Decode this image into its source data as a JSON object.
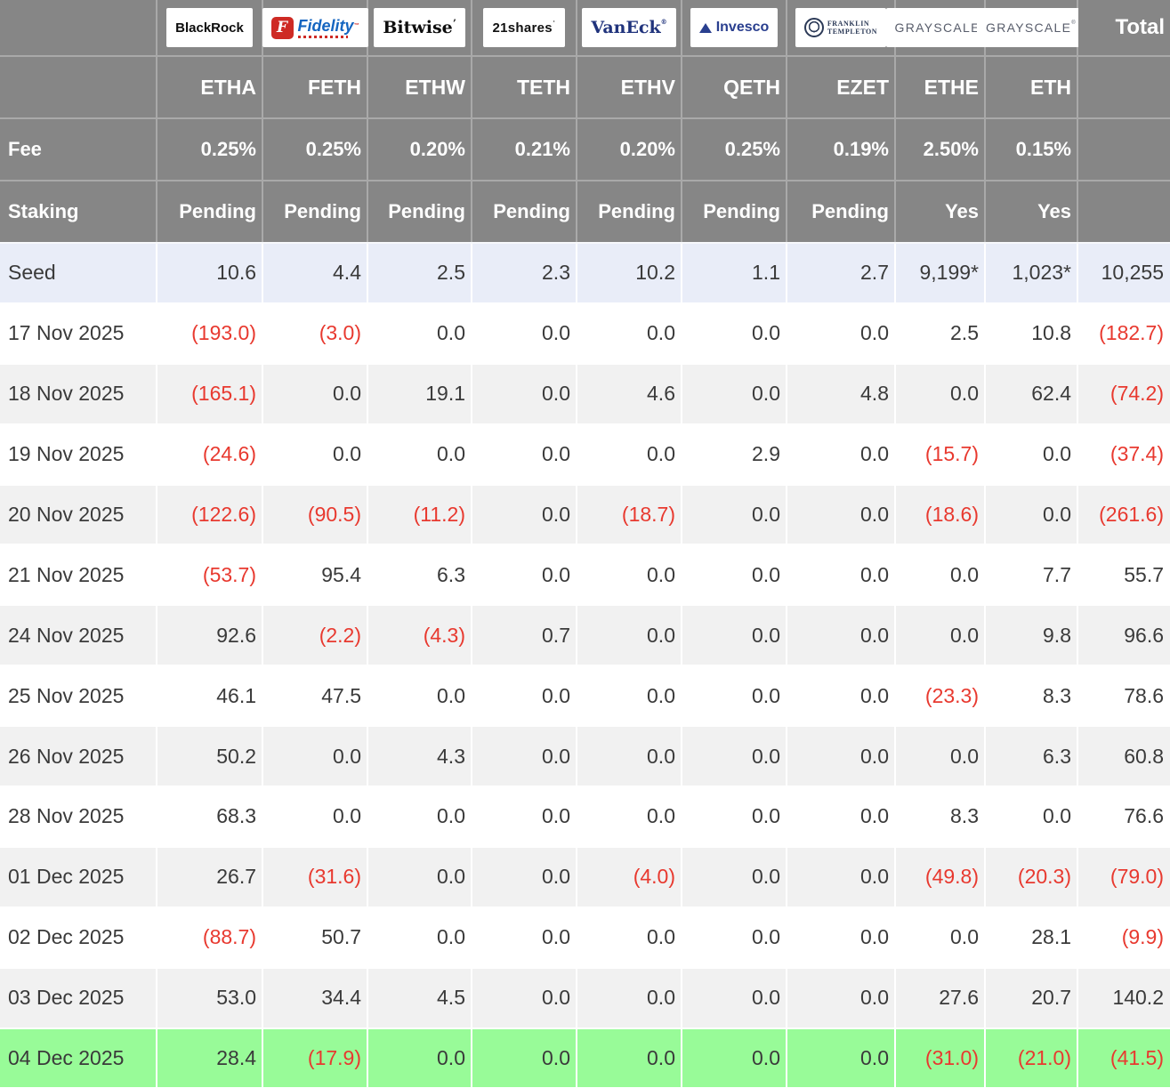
{
  "chart_data": {
    "type": "table",
    "total_header": "Total",
    "fee_label": "Fee",
    "staking_label": "Staking",
    "providers": [
      {
        "brand": "blackrock",
        "logo_text": "BlackRock",
        "ticker": "ETHA",
        "fee": "0.25%",
        "staking": "Pending"
      },
      {
        "brand": "fidelity",
        "logo_badge": "F",
        "logo_text": "Fidelity",
        "ticker": "FETH",
        "fee": "0.25%",
        "staking": "Pending"
      },
      {
        "brand": "bitwise",
        "logo_text": "Bitwise",
        "ticker": "ETHW",
        "fee": "0.20%",
        "staking": "Pending"
      },
      {
        "brand": "21shares",
        "logo_text": "21shares",
        "ticker": "TETH",
        "fee": "0.21%",
        "staking": "Pending"
      },
      {
        "brand": "vaneck",
        "logo_text": "VanEck",
        "ticker": "ETHV",
        "fee": "0.20%",
        "staking": "Pending"
      },
      {
        "brand": "invesco",
        "logo_text": "Invesco",
        "ticker": "QETH",
        "fee": "0.25%",
        "staking": "Pending"
      },
      {
        "brand": "franklin",
        "logo_lines": [
          "FRANKLIN",
          "TEMPLETON"
        ],
        "ticker": "EZET",
        "fee": "0.19%",
        "staking": "Pending"
      },
      {
        "brand": "grayscale",
        "logo_text": "GRAYSCALE",
        "ticker": "ETHE",
        "fee": "2.50%",
        "staking": "Yes"
      },
      {
        "brand": "grayscale",
        "logo_text": "GRAYSCALE",
        "ticker": "ETH",
        "fee": "0.15%",
        "staking": "Yes"
      }
    ],
    "rows": [
      {
        "label": "Seed",
        "values": [
          "10.6",
          "4.4",
          "2.5",
          "2.3",
          "10.2",
          "1.1",
          "2.7",
          "9,199*",
          "1,023*"
        ],
        "total": "10,255",
        "highlight": "seed"
      },
      {
        "label": "17 Nov 2025",
        "values": [
          "(193.0)",
          "(3.0)",
          "0.0",
          "0.0",
          "0.0",
          "0.0",
          "0.0",
          "2.5",
          "10.8"
        ],
        "total": "(182.7)"
      },
      {
        "label": "18 Nov 2025",
        "values": [
          "(165.1)",
          "0.0",
          "19.1",
          "0.0",
          "4.6",
          "0.0",
          "4.8",
          "0.0",
          "62.4"
        ],
        "total": "(74.2)"
      },
      {
        "label": "19 Nov 2025",
        "values": [
          "(24.6)",
          "0.0",
          "0.0",
          "0.0",
          "0.0",
          "2.9",
          "0.0",
          "(15.7)",
          "0.0"
        ],
        "total": "(37.4)"
      },
      {
        "label": "20 Nov 2025",
        "values": [
          "(122.6)",
          "(90.5)",
          "(11.2)",
          "0.0",
          "(18.7)",
          "0.0",
          "0.0",
          "(18.6)",
          "0.0"
        ],
        "total": "(261.6)"
      },
      {
        "label": "21 Nov 2025",
        "values": [
          "(53.7)",
          "95.4",
          "6.3",
          "0.0",
          "0.0",
          "0.0",
          "0.0",
          "0.0",
          "7.7"
        ],
        "total": "55.7"
      },
      {
        "label": "24 Nov 2025",
        "values": [
          "92.6",
          "(2.2)",
          "(4.3)",
          "0.7",
          "0.0",
          "0.0",
          "0.0",
          "0.0",
          "9.8"
        ],
        "total": "96.6"
      },
      {
        "label": "25 Nov 2025",
        "values": [
          "46.1",
          "47.5",
          "0.0",
          "0.0",
          "0.0",
          "0.0",
          "0.0",
          "(23.3)",
          "8.3"
        ],
        "total": "78.6"
      },
      {
        "label": "26 Nov 2025",
        "values": [
          "50.2",
          "0.0",
          "4.3",
          "0.0",
          "0.0",
          "0.0",
          "0.0",
          "0.0",
          "6.3"
        ],
        "total": "60.8"
      },
      {
        "label": "28 Nov 2025",
        "values": [
          "68.3",
          "0.0",
          "0.0",
          "0.0",
          "0.0",
          "0.0",
          "0.0",
          "8.3",
          "0.0"
        ],
        "total": "76.6"
      },
      {
        "label": "01 Dec 2025",
        "values": [
          "26.7",
          "(31.6)",
          "0.0",
          "0.0",
          "(4.0)",
          "0.0",
          "0.0",
          "(49.8)",
          "(20.3)"
        ],
        "total": "(79.0)"
      },
      {
        "label": "02 Dec 2025",
        "values": [
          "(88.7)",
          "50.7",
          "0.0",
          "0.0",
          "0.0",
          "0.0",
          "0.0",
          "0.0",
          "28.1"
        ],
        "total": "(9.9)"
      },
      {
        "label": "03 Dec 2025",
        "values": [
          "53.0",
          "34.4",
          "4.5",
          "0.0",
          "0.0",
          "0.0",
          "0.0",
          "27.6",
          "20.7"
        ],
        "total": "140.2"
      },
      {
        "label": "04 Dec 2025",
        "values": [
          "28.4",
          "(17.9)",
          "0.0",
          "0.0",
          "0.0",
          "0.0",
          "0.0",
          "(31.0)",
          "(21.0)"
        ],
        "total": "(41.5)",
        "highlight": "latest"
      }
    ]
  },
  "colors": {
    "header_bg": "#868686",
    "header_text": "#ffffff",
    "body_text": "#3a3a3a",
    "negative_text": "#e8392f",
    "seed_row_bg": "#e9edf8",
    "alt_row_bg": "#f1f1f1",
    "white_row_bg": "#ffffff",
    "latest_row_bg": "#98fb98"
  }
}
